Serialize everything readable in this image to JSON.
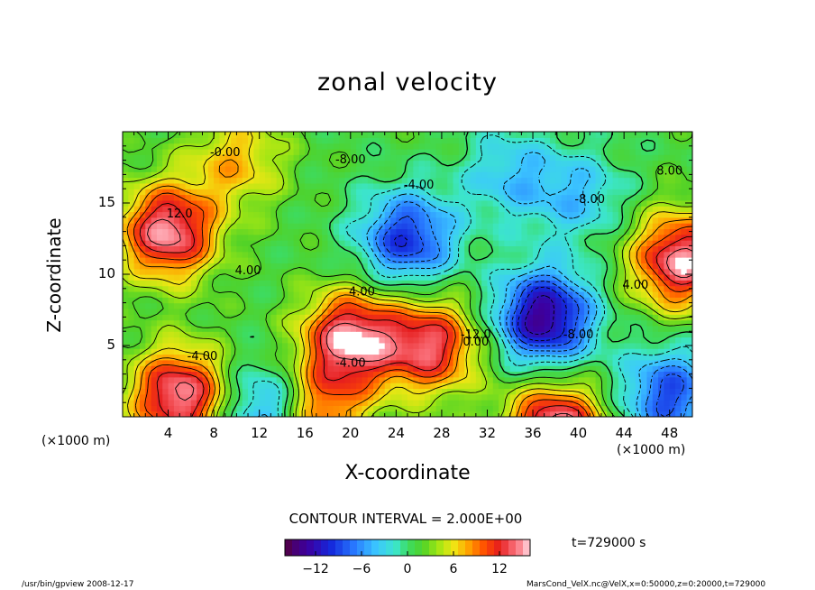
{
  "chart_data": {
    "type": "heatmap",
    "title": "zonal velocity",
    "xlabel": "X-coordinate",
    "ylabel": "Z-coordinate",
    "x_unit": "(×1000 m)",
    "y_unit": "(×1000 m)",
    "xlim": [
      0,
      50
    ],
    "ylim": [
      0,
      20
    ],
    "x_ticks": [
      "4",
      "8",
      "12",
      "16",
      "20",
      "24",
      "28",
      "32",
      "36",
      "40",
      "44",
      "48"
    ],
    "y_ticks": [
      "5",
      "10",
      "15"
    ],
    "contour_interval": "CONTOUR INTERVAL = 2.000E+00",
    "contour_labels": [
      "-0.00",
      "-8.00",
      "-4.00",
      "-12.0",
      "-8.00",
      "4.00",
      "-4.00",
      "4.00",
      "-8.00",
      "0.00",
      "4.00",
      "-4.00",
      "12.0",
      "8.00"
    ],
    "colorbar": {
      "range": [
        -16,
        16
      ],
      "ticks": [
        "−12",
        "−6",
        "0",
        "6",
        "12"
      ],
      "tick_values": [
        -12,
        -6,
        0,
        6,
        12
      ]
    },
    "time_label": "t=729000 s",
    "centers": [
      {
        "x": 4,
        "z": 13,
        "v": 14
      },
      {
        "x": 49,
        "z": 11,
        "v": 14
      },
      {
        "x": 20,
        "z": 5.5,
        "v": 14
      },
      {
        "x": 27,
        "z": 5,
        "v": 12
      },
      {
        "x": 38,
        "z": -1,
        "v": 15
      },
      {
        "x": 5,
        "z": 1.5,
        "v": 14
      },
      {
        "x": 17,
        "z": 0.5,
        "v": 10
      },
      {
        "x": 37,
        "z": 7,
        "v": -15
      },
      {
        "x": 25,
        "z": 12.5,
        "v": -11
      },
      {
        "x": 40,
        "z": 15.5,
        "v": -5
      },
      {
        "x": 13,
        "z": 0.5,
        "v": -9
      },
      {
        "x": 48,
        "z": 1.5,
        "v": -10
      },
      {
        "x": 10,
        "z": 18,
        "v": 6
      },
      {
        "x": 34,
        "z": 17,
        "v": -5
      }
    ]
  },
  "footer": {
    "left": "/usr/bin/gpview   2008-12-17",
    "right": "MarsCond_VelX.nc@VelX,x=0:50000,z=0:20000,t=729000"
  }
}
